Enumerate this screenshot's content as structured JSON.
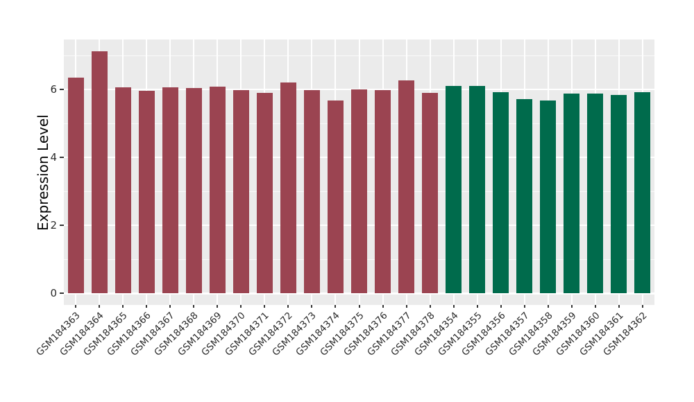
{
  "chart_data": {
    "type": "bar",
    "title": "",
    "xlabel": "",
    "ylabel": "Expression Level",
    "ylim": [
      0,
      7.47
    ],
    "yticks": [
      0,
      2,
      4,
      6
    ],
    "yminor": [
      1,
      3,
      5,
      7
    ],
    "grid": true,
    "legend": "none",
    "panel_bg": "#EBEBEB",
    "grid_color": "#FFFFFF",
    "tick_color": "#333333",
    "group_colors": {
      "group1": "#9B4451",
      "group2": "#006B4C"
    },
    "bars": [
      {
        "label": "GSM184363",
        "value": 6.35,
        "group": "group1"
      },
      {
        "label": "GSM184364",
        "value": 7.12,
        "group": "group1"
      },
      {
        "label": "GSM184365",
        "value": 6.06,
        "group": "group1"
      },
      {
        "label": "GSM184366",
        "value": 5.95,
        "group": "group1"
      },
      {
        "label": "GSM184367",
        "value": 6.07,
        "group": "group1"
      },
      {
        "label": "GSM184368",
        "value": 6.05,
        "group": "group1"
      },
      {
        "label": "GSM184369",
        "value": 6.09,
        "group": "group1"
      },
      {
        "label": "GSM184370",
        "value": 5.98,
        "group": "group1"
      },
      {
        "label": "GSM184371",
        "value": 5.89,
        "group": "group1"
      },
      {
        "label": "GSM184372",
        "value": 6.2,
        "group": "group1"
      },
      {
        "label": "GSM184373",
        "value": 5.98,
        "group": "group1"
      },
      {
        "label": "GSM184374",
        "value": 5.67,
        "group": "group1"
      },
      {
        "label": "GSM184375",
        "value": 6.01,
        "group": "group1"
      },
      {
        "label": "GSM184376",
        "value": 5.97,
        "group": "group1"
      },
      {
        "label": "GSM184377",
        "value": 6.26,
        "group": "group1"
      },
      {
        "label": "GSM184378",
        "value": 5.89,
        "group": "group1"
      },
      {
        "label": "GSM184354",
        "value": 6.1,
        "group": "group2"
      },
      {
        "label": "GSM184355",
        "value": 6.1,
        "group": "group2"
      },
      {
        "label": "GSM184356",
        "value": 5.91,
        "group": "group2"
      },
      {
        "label": "GSM184357",
        "value": 5.71,
        "group": "group2"
      },
      {
        "label": "GSM184358",
        "value": 5.67,
        "group": "group2"
      },
      {
        "label": "GSM184359",
        "value": 5.87,
        "group": "group2"
      },
      {
        "label": "GSM184360",
        "value": 5.87,
        "group": "group2"
      },
      {
        "label": "GSM184361",
        "value": 5.84,
        "group": "group2"
      },
      {
        "label": "GSM184362",
        "value": 5.91,
        "group": "group2"
      }
    ]
  }
}
